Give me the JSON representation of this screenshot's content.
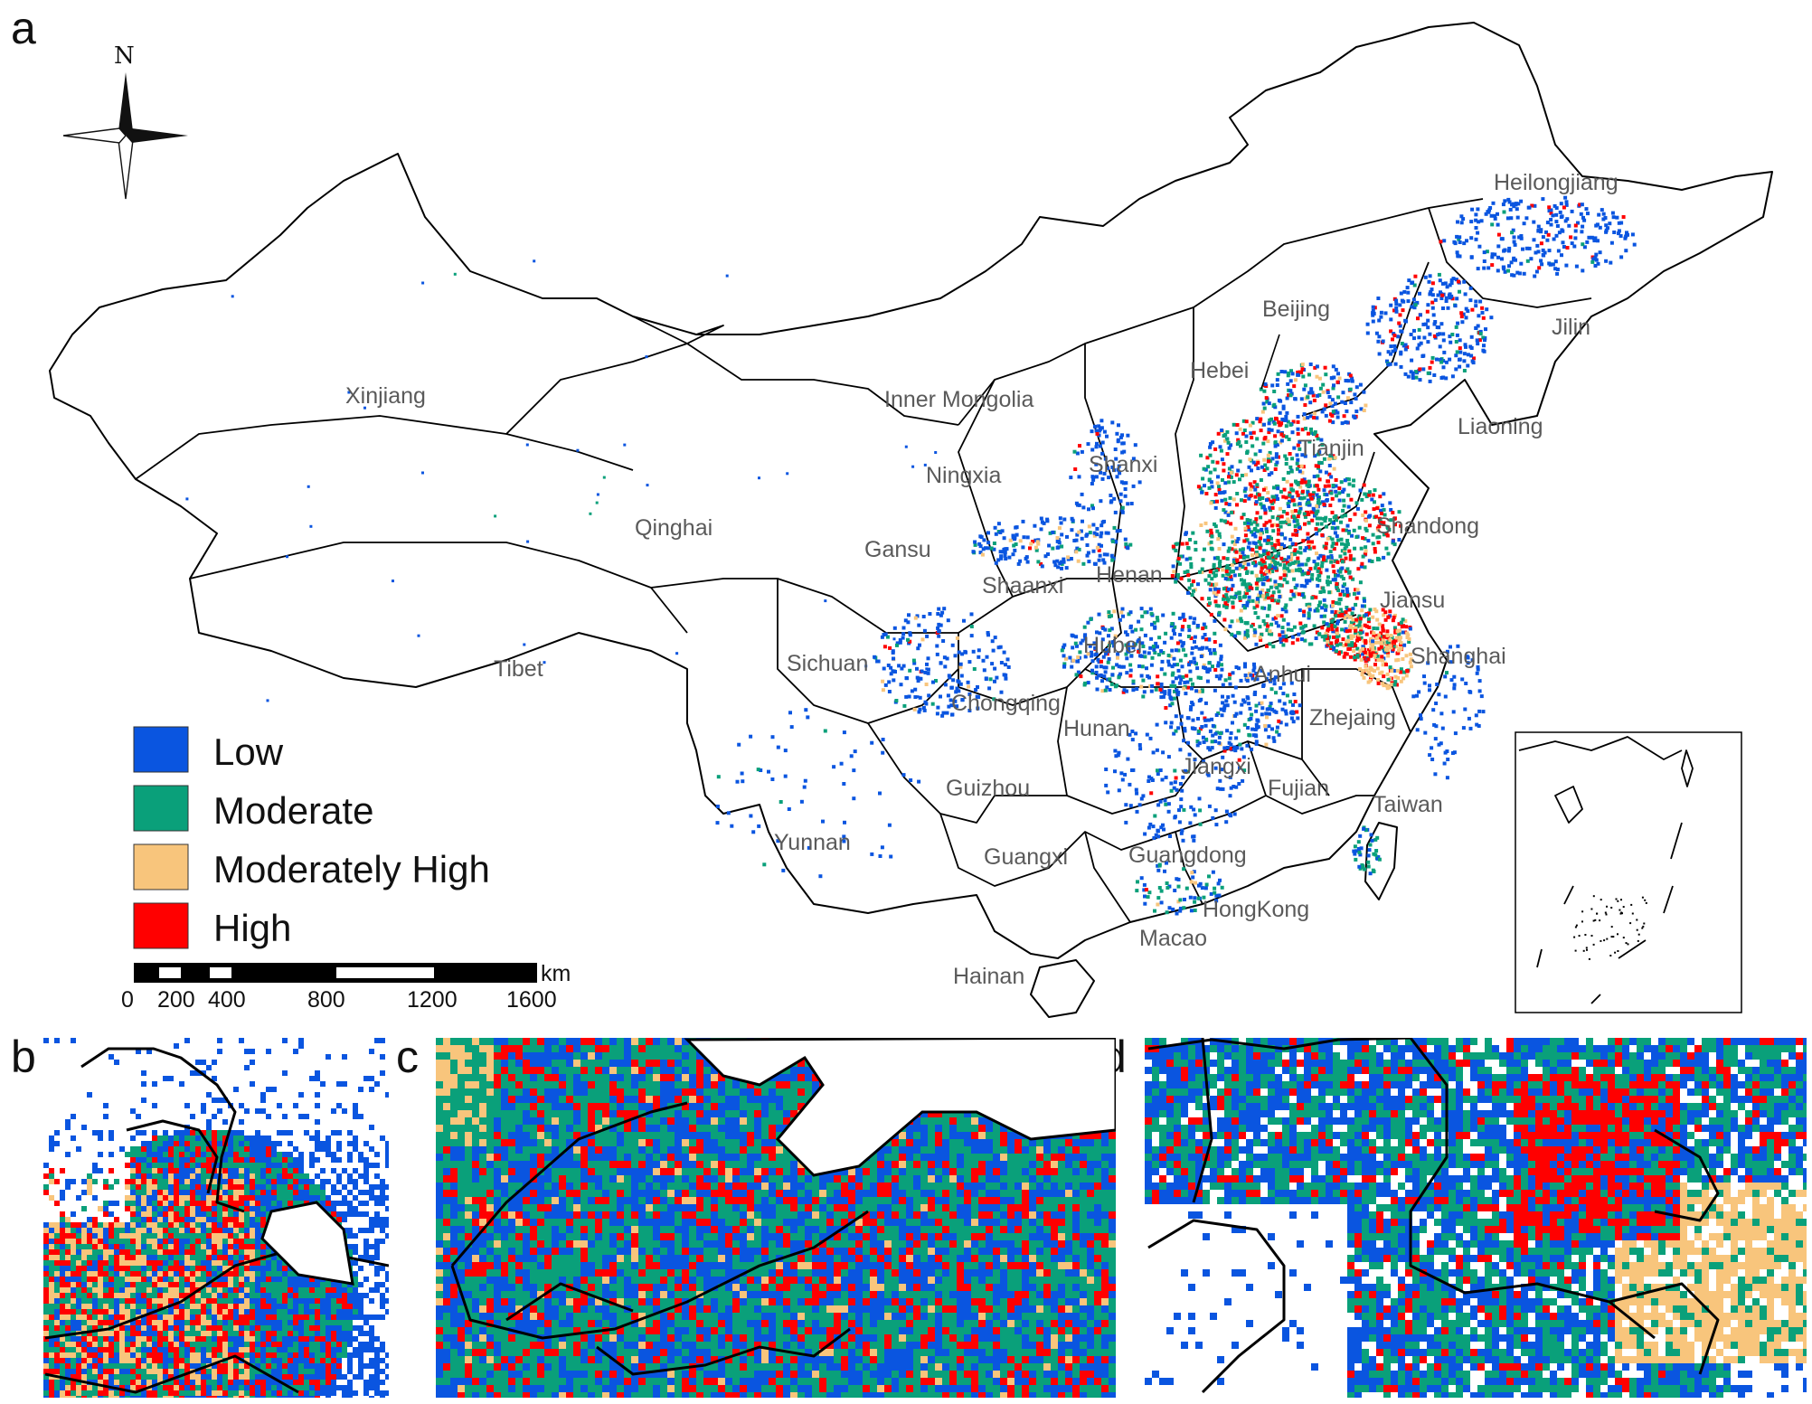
{
  "figure": {
    "panel_labels": [
      "a",
      "b",
      "c",
      "d"
    ],
    "north_label": "N"
  },
  "provinces": [
    {
      "name": "Heilongjiang"
    },
    {
      "name": "Jilin"
    },
    {
      "name": "Liaoning"
    },
    {
      "name": "Beijing"
    },
    {
      "name": "Hebei"
    },
    {
      "name": "Tianjin"
    },
    {
      "name": "Inner Mongolia"
    },
    {
      "name": "Xinjiang"
    },
    {
      "name": "Shanxi"
    },
    {
      "name": "Ningxia"
    },
    {
      "name": "Shandong"
    },
    {
      "name": "Qinghai"
    },
    {
      "name": "Gansu"
    },
    {
      "name": "Henan"
    },
    {
      "name": "Shaanxi"
    },
    {
      "name": "Jiansu"
    },
    {
      "name": "Tibet"
    },
    {
      "name": "Hubei"
    },
    {
      "name": "Sichuan"
    },
    {
      "name": "Anhui"
    },
    {
      "name": "Shanghai"
    },
    {
      "name": "Chongqing"
    },
    {
      "name": "Hunan"
    },
    {
      "name": "Zhejaing"
    },
    {
      "name": "Jiangxi"
    },
    {
      "name": "Guizhou"
    },
    {
      "name": "Fujian"
    },
    {
      "name": "Taiwan"
    },
    {
      "name": "Yunnan"
    },
    {
      "name": "Guangxi"
    },
    {
      "name": "Guangdong"
    },
    {
      "name": "HongKong"
    },
    {
      "name": "Macao"
    },
    {
      "name": "Hainan"
    }
  ],
  "legend": {
    "items": [
      {
        "label": "Low",
        "color": "#0a55e0"
      },
      {
        "label": "Moderate",
        "color": "#0aa07a"
      },
      {
        "label": "Moderately High",
        "color": "#f8c57c"
      },
      {
        "label": "High",
        "color": "#ff0000"
      }
    ]
  },
  "scalebar": {
    "unit": "km",
    "ticks": [
      "0",
      "200",
      "400",
      "800",
      "1200",
      "1600"
    ]
  }
}
